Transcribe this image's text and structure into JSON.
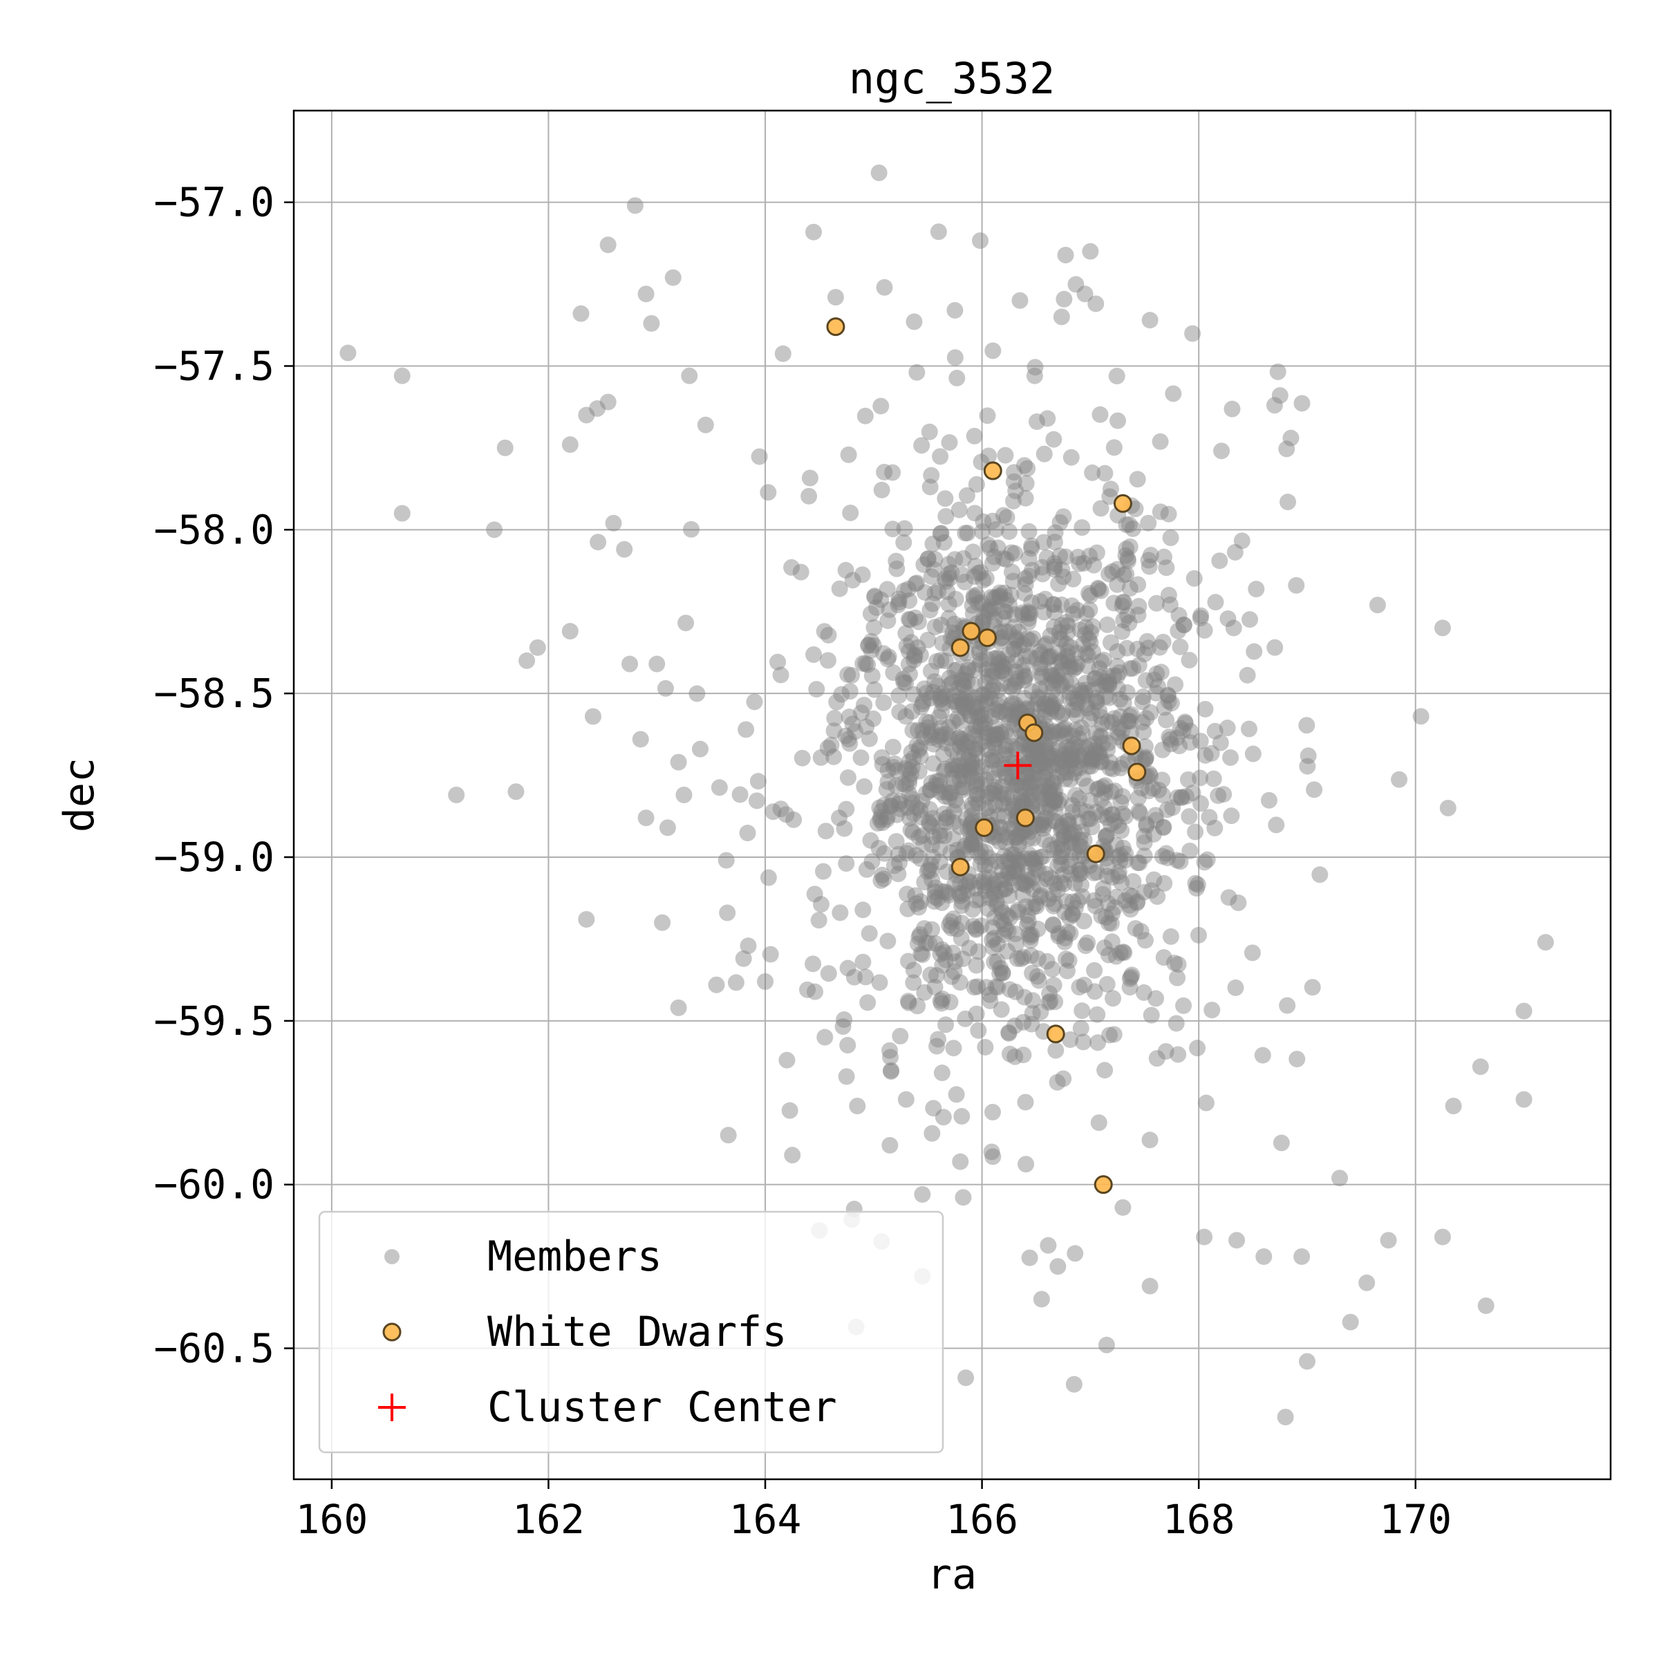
{
  "chart_data": {
    "type": "scatter",
    "title": "ngc_3532",
    "xlabel": "ra",
    "ylabel": "dec",
    "xlim": [
      159.65,
      171.8
    ],
    "ylim": [
      -60.9,
      -56.72
    ],
    "xticks": [
      160,
      162,
      164,
      166,
      168,
      170
    ],
    "yticks": [
      -57.0,
      -57.5,
      -58.0,
      -58.5,
      -59.0,
      -59.5,
      -60.0,
      -60.5
    ],
    "xtick_labels": [
      "160",
      "162",
      "164",
      "166",
      "168",
      "170"
    ],
    "ytick_labels": [
      "-57.0",
      "-57.5",
      "-58.0",
      "-58.5",
      "-59.0",
      "-59.5",
      "-60.0",
      "-60.5"
    ],
    "grid": true,
    "legend_position": "bottom-left",
    "series": [
      {
        "name": "Members",
        "marker": "circle",
        "color": "#808080",
        "alpha": 0.45,
        "generated_count": 1900,
        "center": [
          166.35,
          -58.72
        ],
        "spread": [
          1.35,
          0.6
        ],
        "points": [
          [
            160.15,
            -57.46
          ],
          [
            160.65,
            -57.53
          ],
          [
            160.65,
            -57.95
          ],
          [
            161.15,
            -58.81
          ],
          [
            161.5,
            -58.0
          ],
          [
            161.6,
            -57.75
          ],
          [
            161.7,
            -58.8
          ],
          [
            161.8,
            -58.4
          ],
          [
            161.9,
            -58.36
          ],
          [
            162.2,
            -57.74
          ],
          [
            162.2,
            -58.31
          ],
          [
            162.3,
            -57.34
          ],
          [
            162.35,
            -57.65
          ],
          [
            162.35,
            -59.19
          ],
          [
            162.45,
            -57.63
          ],
          [
            162.55,
            -57.13
          ],
          [
            162.55,
            -57.61
          ],
          [
            162.6,
            -57.98
          ],
          [
            162.7,
            -58.06
          ],
          [
            162.75,
            -58.41
          ],
          [
            162.8,
            -57.01
          ],
          [
            162.85,
            -58.64
          ],
          [
            162.9,
            -57.28
          ],
          [
            162.9,
            -58.88
          ],
          [
            162.95,
            -57.37
          ],
          [
            163.0,
            -58.41
          ],
          [
            163.05,
            -59.2
          ],
          [
            163.1,
            -58.91
          ],
          [
            163.15,
            -57.23
          ],
          [
            163.2,
            -58.71
          ],
          [
            163.2,
            -59.46
          ],
          [
            163.25,
            -58.81
          ],
          [
            163.3,
            -57.53
          ],
          [
            163.4,
            -58.67
          ],
          [
            163.45,
            -57.68
          ],
          [
            163.55,
            -59.39
          ],
          [
            163.65,
            -59.17
          ],
          [
            163.8,
            -59.31
          ],
          [
            164.0,
            -59.38
          ],
          [
            164.2,
            -59.62
          ],
          [
            164.25,
            -59.91
          ],
          [
            164.5,
            -60.14
          ],
          [
            164.55,
            -59.55
          ],
          [
            164.65,
            -57.29
          ],
          [
            164.75,
            -59.67
          ],
          [
            164.85,
            -59.76
          ],
          [
            165.05,
            -56.91
          ],
          [
            165.1,
            -57.26
          ],
          [
            165.15,
            -59.88
          ],
          [
            165.3,
            -59.74
          ],
          [
            165.45,
            -60.03
          ],
          [
            165.45,
            -60.28
          ],
          [
            165.6,
            -57.09
          ],
          [
            165.75,
            -57.33
          ],
          [
            165.8,
            -59.93
          ],
          [
            165.85,
            -60.59
          ],
          [
            166.35,
            -57.3
          ],
          [
            166.55,
            -60.35
          ],
          [
            166.7,
            -60.25
          ],
          [
            166.85,
            -60.61
          ],
          [
            166.95,
            -57.28
          ],
          [
            167.0,
            -57.15
          ],
          [
            167.05,
            -57.31
          ],
          [
            167.15,
            -60.49
          ],
          [
            167.3,
            -60.07
          ],
          [
            167.55,
            -57.36
          ],
          [
            167.55,
            -60.31
          ],
          [
            168.05,
            -60.16
          ],
          [
            168.35,
            -60.17
          ],
          [
            168.6,
            -60.22
          ],
          [
            168.7,
            -57.62
          ],
          [
            168.75,
            -57.59
          ],
          [
            168.8,
            -60.71
          ],
          [
            168.85,
            -57.72
          ],
          [
            168.9,
            -58.17
          ],
          [
            168.95,
            -60.22
          ],
          [
            169.0,
            -60.54
          ],
          [
            169.3,
            -59.98
          ],
          [
            169.4,
            -60.42
          ],
          [
            169.55,
            -60.3
          ],
          [
            169.65,
            -58.23
          ],
          [
            169.75,
            -60.17
          ],
          [
            170.05,
            -58.57
          ],
          [
            170.25,
            -58.3
          ],
          [
            170.25,
            -60.16
          ],
          [
            170.3,
            -58.85
          ],
          [
            170.35,
            -59.76
          ],
          [
            170.6,
            -59.64
          ],
          [
            170.65,
            -60.37
          ],
          [
            171.0,
            -59.47
          ],
          [
            171.0,
            -59.74
          ],
          [
            171.2,
            -59.26
          ]
        ]
      },
      {
        "name": "White Dwarfs",
        "marker": "circle",
        "color": "#ffb84d",
        "edgecolor": "#5a4520",
        "points": [
          [
            164.65,
            -57.38
          ],
          [
            166.1,
            -57.82
          ],
          [
            167.3,
            -57.92
          ],
          [
            165.9,
            -58.31
          ],
          [
            165.8,
            -58.36
          ],
          [
            166.05,
            -58.33
          ],
          [
            166.42,
            -58.59
          ],
          [
            166.48,
            -58.62
          ],
          [
            167.38,
            -58.66
          ],
          [
            167.43,
            -58.74
          ],
          [
            166.02,
            -58.91
          ],
          [
            166.4,
            -58.88
          ],
          [
            167.05,
            -58.99
          ],
          [
            165.8,
            -59.03
          ],
          [
            166.68,
            -59.54
          ],
          [
            167.12,
            -60.0
          ]
        ]
      },
      {
        "name": "Cluster Center",
        "marker": "plus",
        "color": "#ff0000",
        "points": [
          [
            166.33,
            -58.72
          ]
        ]
      }
    ]
  }
}
